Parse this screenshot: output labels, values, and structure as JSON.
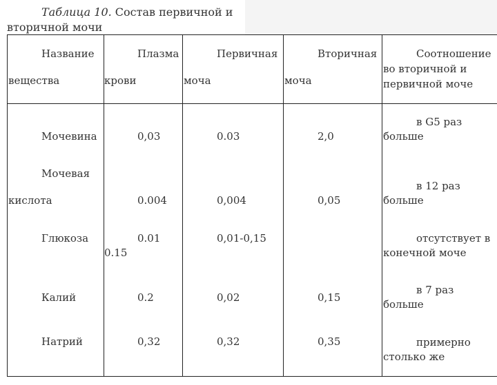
{
  "caption": {
    "label": "Таблица 10.",
    "text": "Состав первичной и вторичной мочи"
  },
  "table": {
    "header": [
      [
        "Название",
        "вещества"
      ],
      [
        "Плазма",
        "крови"
      ],
      [
        "Первичная",
        "моча"
      ],
      [
        "Вторичная",
        "моча"
      ],
      [
        "Соотношение",
        "во вторичной и",
        "первичной моче"
      ]
    ],
    "rows": [
      [
        [
          "Мочевина"
        ],
        [
          "0,03"
        ],
        [
          "0.03"
        ],
        [
          "2,0"
        ],
        [
          "в G5 раз",
          "больше"
        ]
      ],
      [
        [
          "Мочевая",
          "кислота"
        ],
        [
          "0.004"
        ],
        [
          "0,004"
        ],
        [
          "0,05"
        ],
        [
          "в 12 раз",
          "больше"
        ]
      ],
      [
        [
          "Глюкоза"
        ],
        [
          "0.01",
          "0.15"
        ],
        [
          "0,01-0,15"
        ],
        [],
        [
          "отсутствует в",
          "конечной моче"
        ]
      ],
      [
        [
          "Калий"
        ],
        [
          "0.2"
        ],
        [
          "0,02"
        ],
        [
          "0,15"
        ],
        [
          "в 7 раз",
          "больше"
        ]
      ],
      [
        [
          "Натрий"
        ],
        [
          "0,32"
        ],
        [
          "0,32"
        ],
        [
          "0,35"
        ],
        [
          "примерно",
          "столько же"
        ]
      ]
    ]
  }
}
